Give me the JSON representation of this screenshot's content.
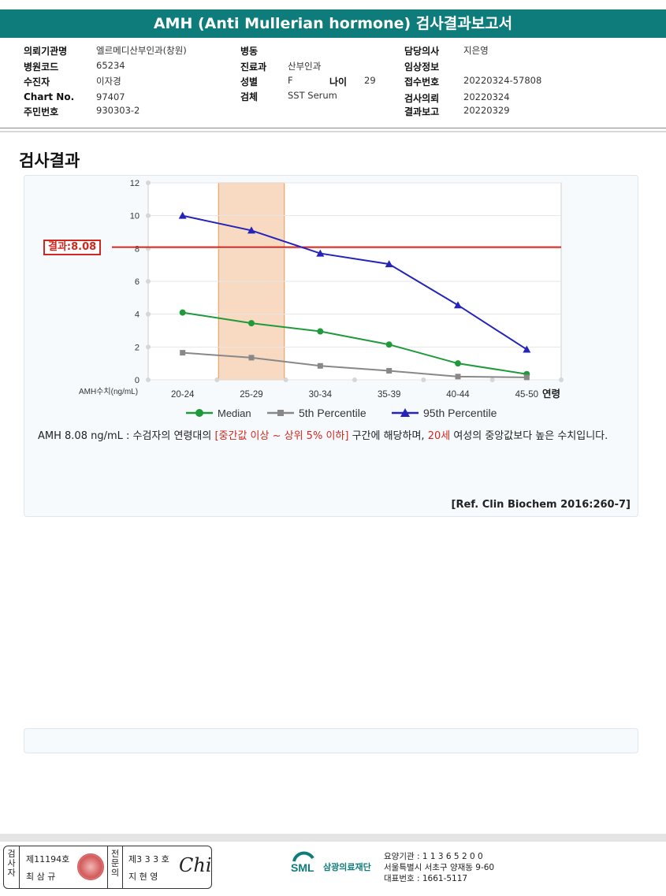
{
  "header": {
    "title": "AMH (Anti Mullerian hormone) 검사결과보고서"
  },
  "info": {
    "hospital_label": "의뢰기관명",
    "hospital_value": "엘르메디산부인과(창원)",
    "code_label": "병원코드",
    "code_value": "65234",
    "patient_label": "수진자",
    "patient_value": "이자경",
    "chart_label": "Chart No.",
    "chart_value": "97407",
    "idnum_label": "주민번호",
    "idnum_value": "930303-2",
    "ward_label": "병동",
    "ward_value": "",
    "dept_label": "진료과",
    "dept_value": "산부인과",
    "sex_label": "성별",
    "sex_value": "F",
    "age_label": "나이",
    "age_value": "29",
    "specimen_label": "검체",
    "specimen_value": "SST Serum",
    "doctor_label": "담당의사",
    "doctor_value": "지은영",
    "clinical_label": "임상정보",
    "clinical_value": "",
    "receipt_label": "접수번호",
    "receipt_value": "20220324-57808",
    "request_label": "검사의뢰",
    "request_value": "20220324",
    "report_label": "결과보고",
    "report_value": "20220329"
  },
  "section_title": "검사결과",
  "result_badge": "결과:8.08",
  "chart_data": {
    "type": "line",
    "categories": [
      "20-24",
      "25-29",
      "30-34",
      "35-39",
      "40-44",
      "45-50"
    ],
    "xlabel": "연령",
    "ylabel": "AMH수치(ng/mL)",
    "ylim": [
      0,
      12
    ],
    "yticks": [
      "0",
      "2",
      "4",
      "6",
      "8",
      "10",
      "12"
    ],
    "highlight_category": "25-29",
    "highlight_color": "#f8d9c2",
    "result_value": 8.08,
    "result_color": "#d0281f",
    "grid": true,
    "legend_position": "bottom",
    "series": [
      {
        "name": "Median",
        "values": [
          4.1,
          3.45,
          2.95,
          2.15,
          1.0,
          0.35
        ],
        "color": "#1e9a3a",
        "marker": "circle"
      },
      {
        "name": "5th Percentile",
        "values": [
          1.65,
          1.35,
          0.85,
          0.55,
          0.2,
          0.15
        ],
        "color": "#888888",
        "marker": "square"
      },
      {
        "name": "95th Percentile",
        "values": [
          10.0,
          9.1,
          7.7,
          7.05,
          4.55,
          1.85
        ],
        "color": "#2424b8",
        "marker": "triangle"
      }
    ]
  },
  "comment": {
    "part1": "AMH  8.08 ng/mL : 수검자의 연령대의 ",
    "red1": "[중간값 이상 ~ 상위 5% 이하]",
    "part2": "  구간에 해당하며, ",
    "red2": "20세",
    "part3": " 여성의 중앙값보다 높은 수치입니다."
  },
  "reference": "[Ref. Clin Biochem 2016:260-7]",
  "footer": {
    "examiner_vertical": "검사자",
    "examiner_license": "제11194호",
    "examiner_name": "최 삼 규",
    "specialist_vertical": "전문의",
    "specialist_license": "제3 3 3 호",
    "specialist_name": "지 현 영",
    "signature": "Chi",
    "logo_text": "SML",
    "org_name": "삼광의료재단",
    "org_code": "요양기관 : 1 1 3 6 5 2 0 0",
    "org_address": "서울특별시 서초구 양재동 9-60",
    "org_phone": "대표번호 : 1661-5117"
  }
}
